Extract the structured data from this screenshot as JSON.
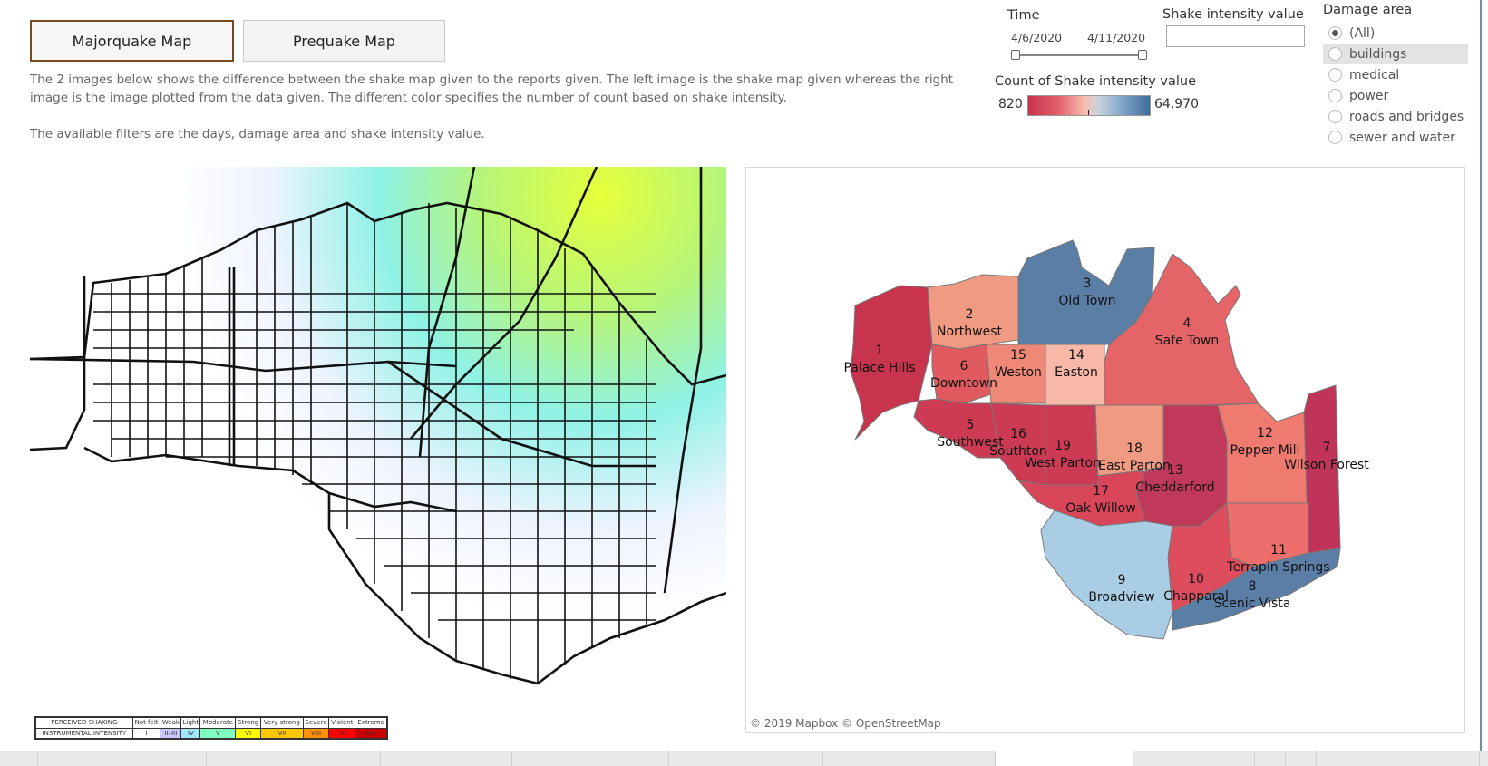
{
  "buttons": {
    "majorquake": "Majorquake Map",
    "prequake": "Prequake Map"
  },
  "description": {
    "line1": "The 2 images below shows the difference between the shake map given to the reports given. The left image is the shake map given whereas the right image is the image plotted from the data given. The different color specifies the number of count based on shake intensity.",
    "line2": "The available filters are the days, damage area and shake intensity value."
  },
  "time_filter": {
    "label": "Time",
    "start": "4/6/2020",
    "end": "4/11/2020"
  },
  "shake_filter": {
    "label": "Shake intensity value",
    "value": ""
  },
  "color_legend": {
    "label": "Count of Shake intensity value",
    "min": "820",
    "max": "64,970",
    "colors": [
      "#c8334d",
      "#e2606a",
      "#f7c1b0",
      "#7fa4c6",
      "#3f6b9b"
    ]
  },
  "damage_area": {
    "label": "Damage area",
    "options": [
      "(All)",
      "buildings",
      "medical",
      "power",
      "roads and bridges",
      "sewer and water"
    ],
    "selected": "(All)"
  },
  "shake_legend": {
    "perceived_label": "PERCEIVED SHAKING",
    "instrumental_label": "INSTRUMENTAL INTENSITY",
    "perceived": [
      "Not felt",
      "Weak",
      "Light",
      "Moderate",
      "Strong",
      "Very strong",
      "Severe",
      "Violent",
      "Extreme"
    ],
    "intensity": [
      "I",
      "II–III",
      "IV",
      "V",
      "VI",
      "VII",
      "VIII",
      "IX",
      "X+"
    ],
    "colors": [
      "#ffffff",
      "#c8c8ff",
      "#a0e6ff",
      "#80ffc0",
      "#ffff00",
      "#ffc800",
      "#ff9100",
      "#ff0000",
      "#c80000"
    ]
  },
  "regions": [
    {
      "id": "1",
      "name": "Palace Hills",
      "color": "#c8334d"
    },
    {
      "id": "2",
      "name": "Northwest",
      "color": "#f19a82"
    },
    {
      "id": "3",
      "name": "Old Town",
      "color": "#5a7ea6"
    },
    {
      "id": "4",
      "name": "Safe Town",
      "color": "#e56468"
    },
    {
      "id": "5",
      "name": "Southwest",
      "color": "#cc3b53"
    },
    {
      "id": "6",
      "name": "Downtown",
      "color": "#e05a5f"
    },
    {
      "id": "7",
      "name": "Wilson Forest",
      "color": "#c0345a"
    },
    {
      "id": "8",
      "name": "Scenic Vista",
      "color": "#5a7ea6"
    },
    {
      "id": "9",
      "name": "Broadview",
      "color": "#a9cde4"
    },
    {
      "id": "10",
      "name": "Chapparal",
      "color": "#dd4d5d"
    },
    {
      "id": "11",
      "name": "Terrapin Springs",
      "color": "#ed6e6a"
    },
    {
      "id": "12",
      "name": "Pepper Mill",
      "color": "#ef7a70"
    },
    {
      "id": "13",
      "name": "Cheddarford",
      "color": "#c1395a"
    },
    {
      "id": "14",
      "name": "Easton",
      "color": "#f8b8a8"
    },
    {
      "id": "15",
      "name": "Weston",
      "color": "#ef8876"
    },
    {
      "id": "16",
      "name": "Southton",
      "color": "#cc3b53"
    },
    {
      "id": "17",
      "name": "Oak Willow",
      "color": "#d94659"
    },
    {
      "id": "18",
      "name": "East Parton",
      "color": "#f19a82"
    },
    {
      "id": "19",
      "name": "West Parton",
      "color": "#cc3b53"
    }
  ],
  "attribution": "© 2019 Mapbox © OpenStreetMap"
}
